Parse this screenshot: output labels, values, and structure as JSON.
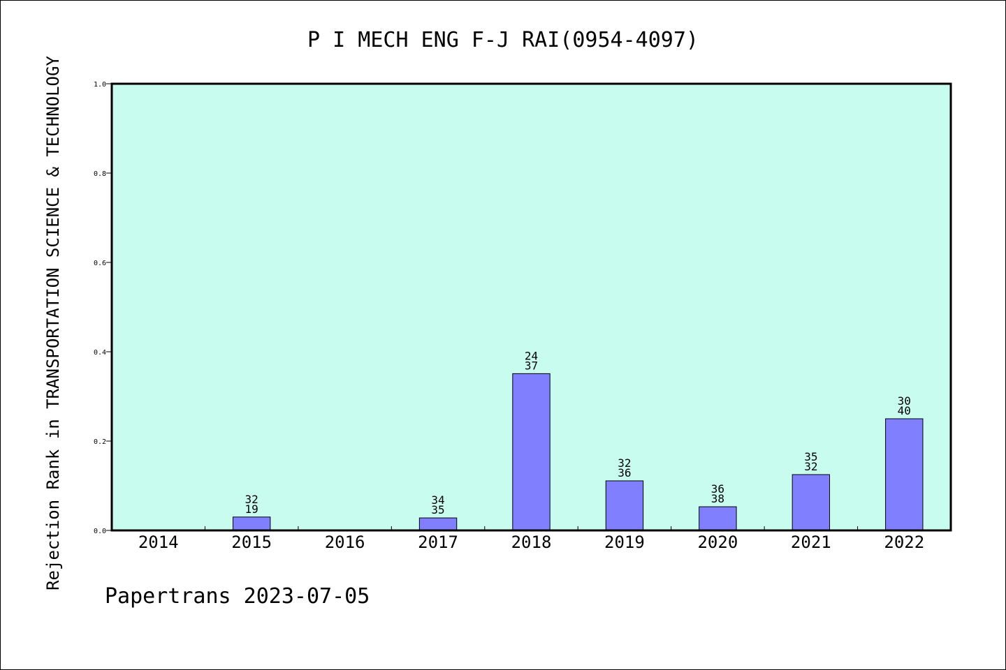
{
  "chart_data": {
    "type": "bar",
    "title": "P I MECH ENG F-J RAI(0954-4097)",
    "xlabel": "",
    "ylabel": "Rejection Rank in TRANSPORTATION SCIENCE & TECHNOLOGY",
    "footer": "Papertrans 2023-07-05",
    "categories": [
      "2014",
      "2015",
      "2016",
      "2017",
      "2018",
      "2019",
      "2020",
      "2021",
      "2022"
    ],
    "values": [
      0,
      0.03,
      0,
      0.028,
      0.351,
      0.111,
      0.053,
      0.125,
      0.25
    ],
    "labels_top": [
      "",
      "32",
      "",
      "34",
      "24",
      "32",
      "36",
      "35",
      "30"
    ],
    "labels_bottom": [
      "",
      "19",
      "",
      "35",
      "37",
      "36",
      "38",
      "32",
      "40"
    ],
    "ylim": [
      0,
      1.0
    ],
    "yticks": [
      0.0,
      0.2,
      0.4,
      0.6,
      0.8,
      1.0
    ],
    "ytick_labels": [
      "0.0",
      "0.2",
      "0.4",
      "0.6",
      "0.8",
      "1.0"
    ],
    "grid": false,
    "colors": {
      "plot_background": "#c8fcef",
      "bar_fill": "#8080ff",
      "bar_stroke": "#000000",
      "axis": "#000000"
    }
  }
}
